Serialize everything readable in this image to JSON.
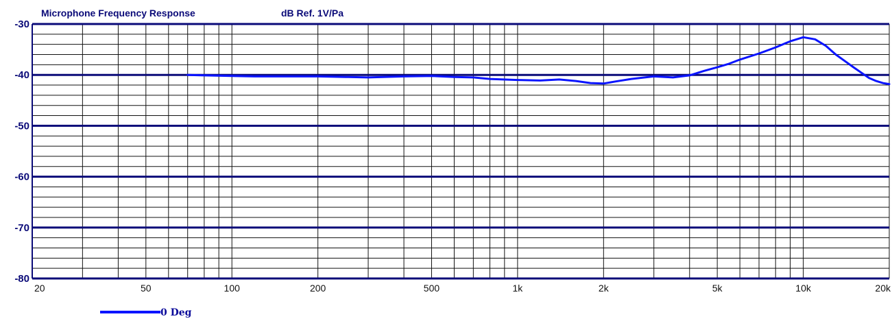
{
  "chart_data": {
    "type": "line",
    "title": "Microphone Frequency Response",
    "subtitle": "dB Ref. 1V/Pa",
    "xscale": "log",
    "xlim": [
      20,
      20000
    ],
    "ylim": [
      -80,
      -30
    ],
    "yticks": [
      {
        "value": -30,
        "label": "-30"
      },
      {
        "value": -40,
        "label": "-40"
      },
      {
        "value": -50,
        "label": "-50"
      },
      {
        "value": -60,
        "label": "-60"
      },
      {
        "value": -70,
        "label": "-70"
      },
      {
        "value": -80,
        "label": "-80"
      }
    ],
    "xticks": [
      {
        "value": 20,
        "label": "20"
      },
      {
        "value": 50,
        "label": "50"
      },
      {
        "value": 100,
        "label": "100"
      },
      {
        "value": 200,
        "label": "200"
      },
      {
        "value": 500,
        "label": "500"
      },
      {
        "value": 1000,
        "label": "1k"
      },
      {
        "value": 2000,
        "label": "2k"
      },
      {
        "value": 5000,
        "label": "5k"
      },
      {
        "value": 10000,
        "label": "10k"
      },
      {
        "value": 20000,
        "label": "20k"
      }
    ],
    "grid": true,
    "legend_position": "bottom-left",
    "series": [
      {
        "name": "0 Deg",
        "color": "#0a14ff",
        "x": [
          70,
          80,
          100,
          120,
          150,
          200,
          250,
          300,
          400,
          500,
          600,
          700,
          800,
          1000,
          1200,
          1400,
          1600,
          1800,
          2000,
          2200,
          2500,
          3000,
          3500,
          4000,
          4500,
          5000,
          5500,
          6000,
          7000,
          8000,
          9000,
          10000,
          11000,
          12000,
          13000,
          14000,
          15000,
          16000,
          17000,
          18000,
          19000,
          20000
        ],
        "y": [
          -40.0,
          -40.1,
          -40.2,
          -40.3,
          -40.3,
          -40.3,
          -40.4,
          -40.5,
          -40.3,
          -40.2,
          -40.4,
          -40.5,
          -40.8,
          -41.0,
          -41.1,
          -40.9,
          -41.2,
          -41.6,
          -41.7,
          -41.3,
          -40.8,
          -40.3,
          -40.5,
          -40.1,
          -39.2,
          -38.5,
          -37.8,
          -37.0,
          -35.8,
          -34.6,
          -33.4,
          -32.6,
          -33.0,
          -34.3,
          -36.0,
          -37.3,
          -38.5,
          -39.6,
          -40.6,
          -41.2,
          -41.6,
          -41.8
        ]
      }
    ]
  }
}
